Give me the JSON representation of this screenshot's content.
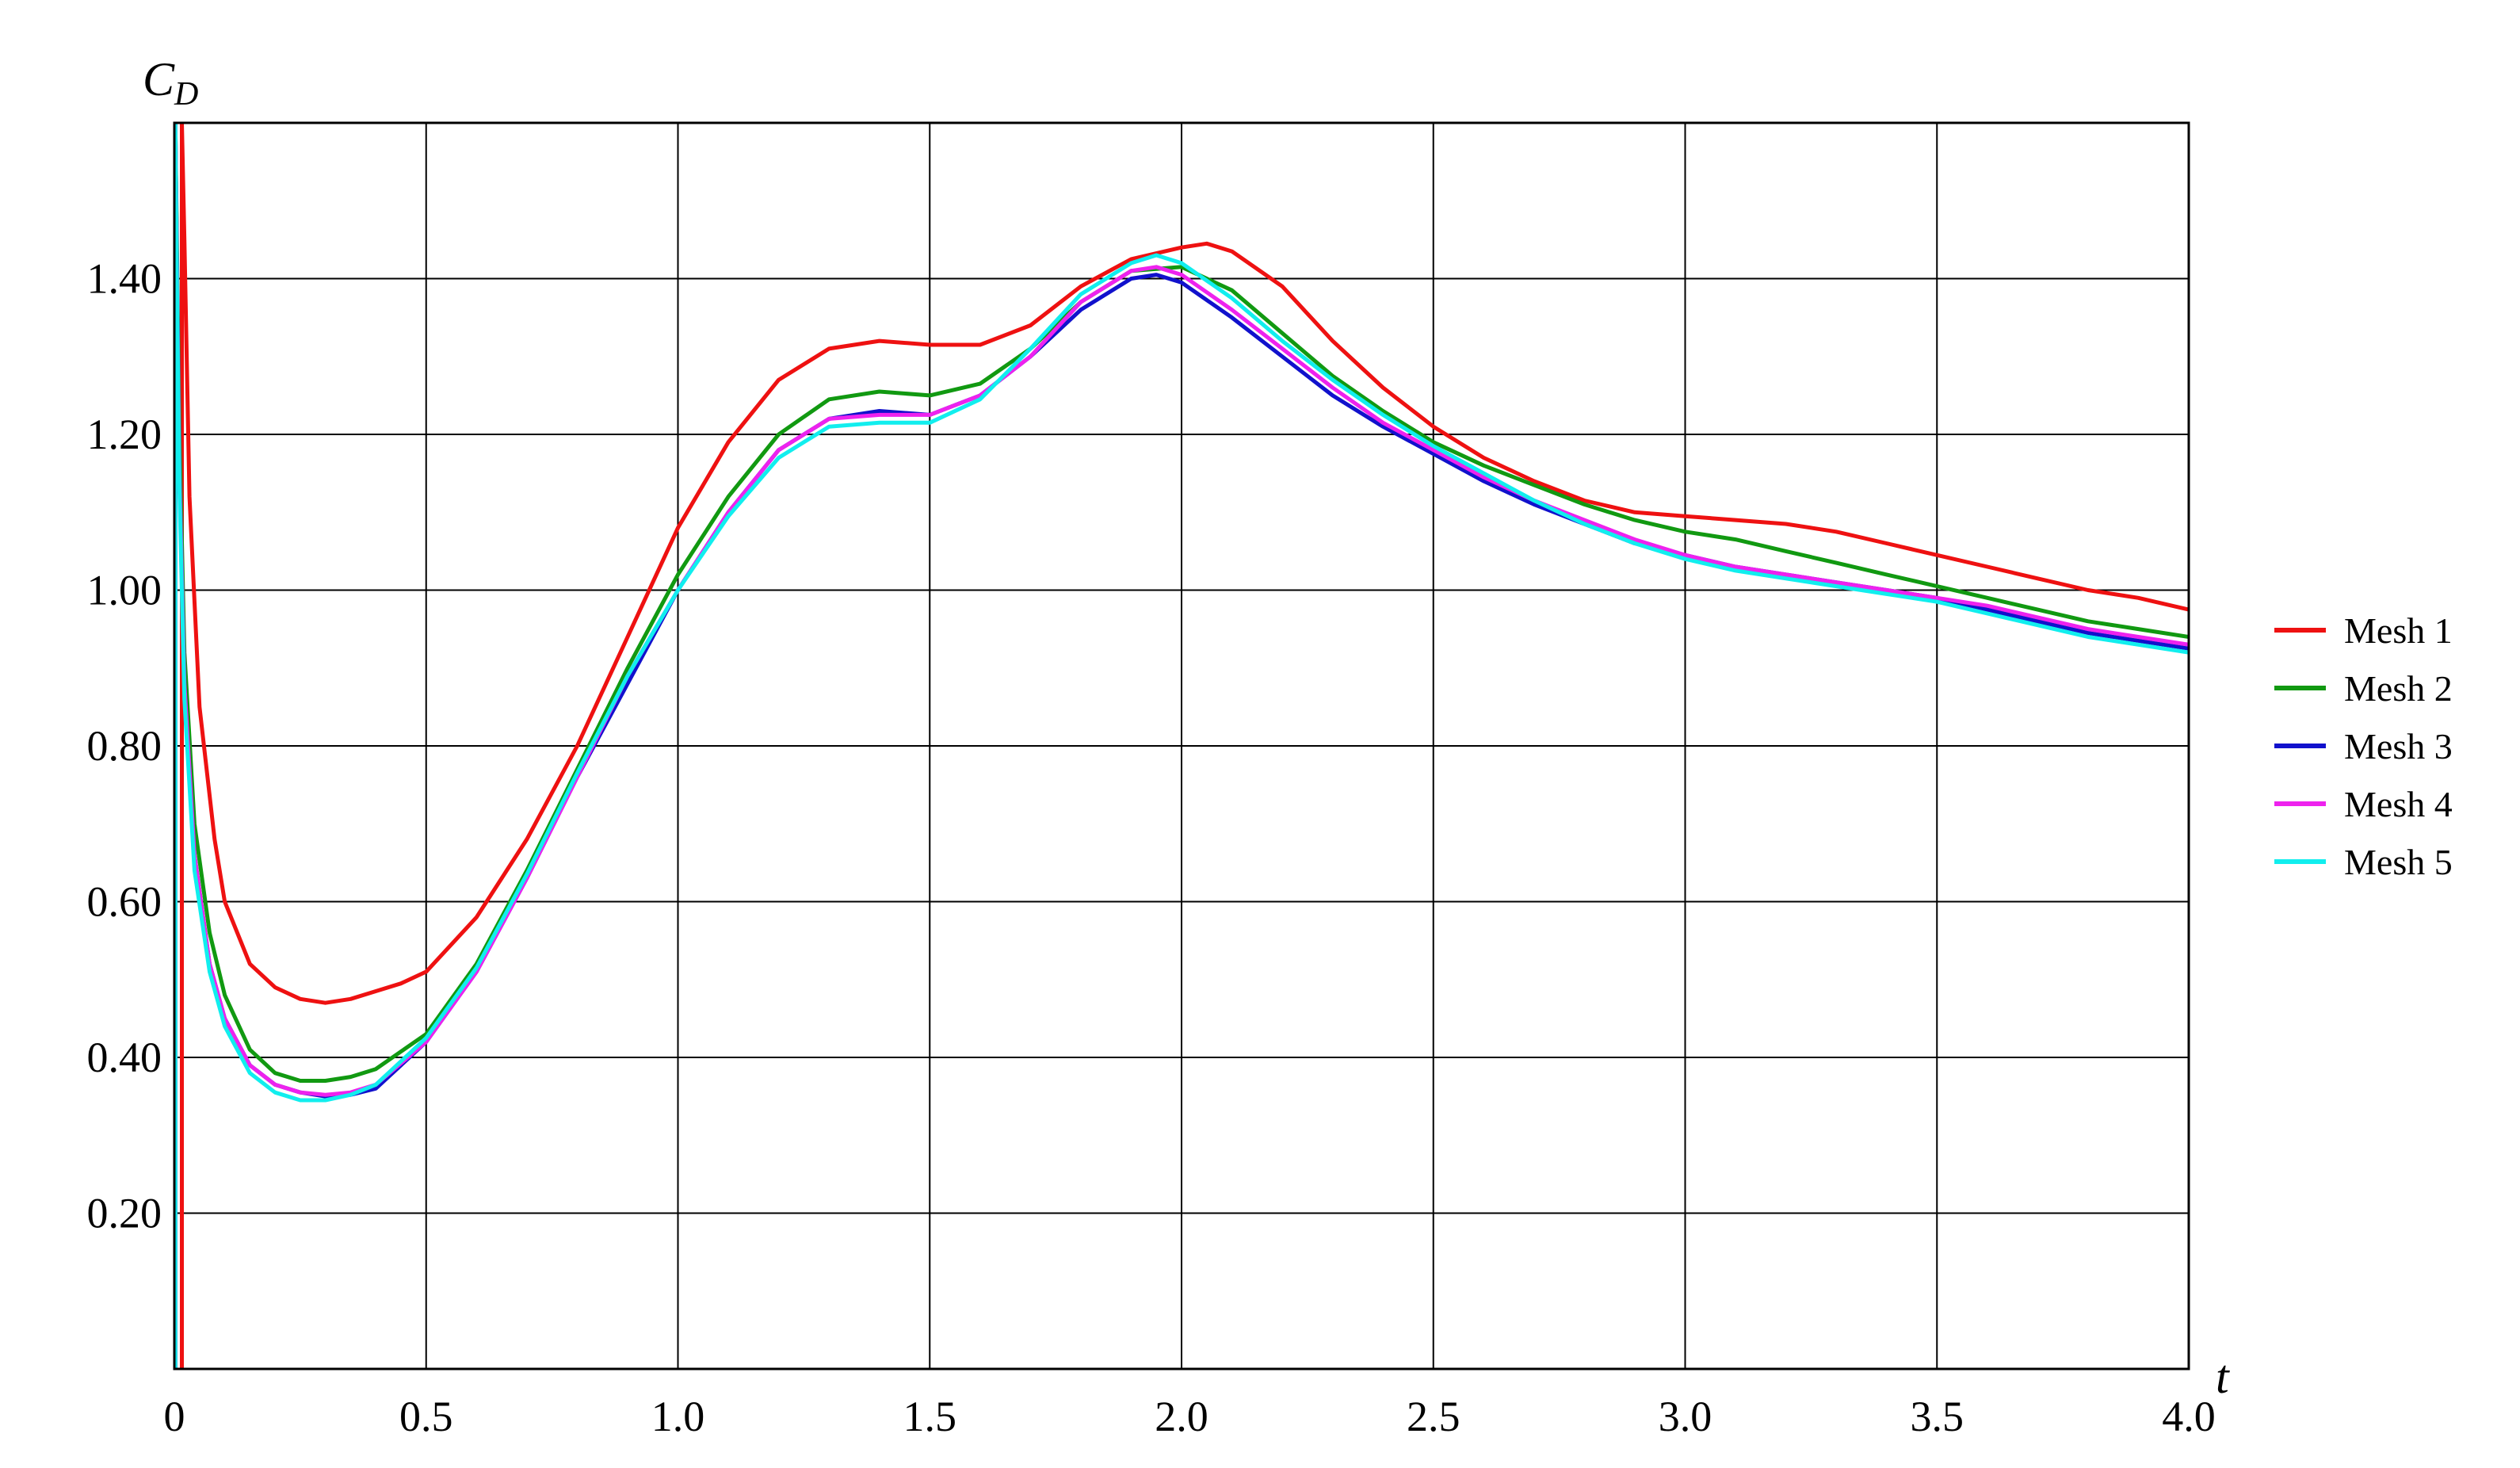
{
  "chart_data": {
    "type": "line",
    "ylabel": {
      "main": "C",
      "sub": "D"
    },
    "xlabel": "t",
    "xlim": [
      0,
      4.0
    ],
    "ylim": [
      0,
      1.6
    ],
    "grid": true,
    "legend_placement": "right",
    "x_ticks": [
      {
        "value": 0,
        "label": "0"
      },
      {
        "value": 0.5,
        "label": "0.5"
      },
      {
        "value": 1.0,
        "label": "1.0"
      },
      {
        "value": 1.5,
        "label": "1.5"
      },
      {
        "value": 2.0,
        "label": "2.0"
      },
      {
        "value": 2.5,
        "label": "2.5"
      },
      {
        "value": 3.0,
        "label": "3.0"
      },
      {
        "value": 3.5,
        "label": "3.5"
      },
      {
        "value": 4.0,
        "label": "4.0"
      }
    ],
    "y_ticks": [
      {
        "value": 0.2,
        "label": "0.20"
      },
      {
        "value": 0.4,
        "label": "0.40"
      },
      {
        "value": 0.6,
        "label": "0.60"
      },
      {
        "value": 0.8,
        "label": "0.80"
      },
      {
        "value": 1.0,
        "label": "1.00"
      },
      {
        "value": 1.2,
        "label": "1.20"
      },
      {
        "value": 1.4,
        "label": "1.40"
      }
    ],
    "series": [
      {
        "name": "Mesh 1",
        "color": "#ee1111",
        "x": [
          0.015,
          0.02,
          0.03,
          0.05,
          0.08,
          0.1,
          0.15,
          0.2,
          0.25,
          0.3,
          0.35,
          0.4,
          0.45,
          0.5,
          0.6,
          0.7,
          0.8,
          0.9,
          1.0,
          1.1,
          1.2,
          1.3,
          1.4,
          1.5,
          1.6,
          1.7,
          1.8,
          1.9,
          2.0,
          2.05,
          2.1,
          2.2,
          2.3,
          2.4,
          2.5,
          2.6,
          2.7,
          2.8,
          2.9,
          3.0,
          3.1,
          3.2,
          3.3,
          3.4,
          3.5,
          3.6,
          3.7,
          3.8,
          3.9,
          4.0
        ],
        "y": [
          1.6,
          1.45,
          1.12,
          0.85,
          0.68,
          0.6,
          0.52,
          0.49,
          0.475,
          0.47,
          0.475,
          0.485,
          0.495,
          0.51,
          0.58,
          0.68,
          0.8,
          0.94,
          1.08,
          1.19,
          1.27,
          1.31,
          1.32,
          1.315,
          1.315,
          1.34,
          1.39,
          1.425,
          1.44,
          1.445,
          1.435,
          1.39,
          1.32,
          1.26,
          1.21,
          1.17,
          1.14,
          1.115,
          1.1,
          1.095,
          1.09,
          1.085,
          1.075,
          1.06,
          1.045,
          1.03,
          1.015,
          1.0,
          0.99,
          0.975
        ]
      },
      {
        "name": "Mesh 2",
        "color": "#119911",
        "x": [
          0.002,
          0.005,
          0.01,
          0.02,
          0.04,
          0.07,
          0.1,
          0.15,
          0.2,
          0.25,
          0.3,
          0.35,
          0.4,
          0.5,
          0.6,
          0.7,
          0.8,
          0.9,
          1.0,
          1.1,
          1.2,
          1.3,
          1.4,
          1.5,
          1.6,
          1.7,
          1.8,
          1.9,
          2.0,
          2.1,
          2.2,
          2.3,
          2.4,
          2.5,
          2.6,
          2.7,
          2.8,
          2.9,
          3.0,
          3.1,
          3.2,
          3.3,
          3.4,
          3.5,
          3.6,
          3.7,
          3.8,
          3.9,
          4.0
        ],
        "y": [
          1.6,
          1.45,
          1.2,
          0.92,
          0.7,
          0.56,
          0.48,
          0.41,
          0.38,
          0.37,
          0.37,
          0.375,
          0.385,
          0.43,
          0.52,
          0.64,
          0.77,
          0.9,
          1.02,
          1.12,
          1.2,
          1.245,
          1.255,
          1.25,
          1.265,
          1.31,
          1.37,
          1.41,
          1.415,
          1.385,
          1.33,
          1.275,
          1.23,
          1.19,
          1.16,
          1.135,
          1.11,
          1.09,
          1.075,
          1.065,
          1.05,
          1.035,
          1.02,
          1.005,
          0.99,
          0.975,
          0.96,
          0.95,
          0.94
        ]
      },
      {
        "name": "Mesh 3",
        "color": "#1111cc",
        "x": [
          0.002,
          0.005,
          0.01,
          0.02,
          0.04,
          0.07,
          0.1,
          0.15,
          0.2,
          0.25,
          0.3,
          0.35,
          0.4,
          0.5,
          0.6,
          0.7,
          0.8,
          0.9,
          1.0,
          1.1,
          1.2,
          1.3,
          1.4,
          1.5,
          1.6,
          1.7,
          1.8,
          1.9,
          1.95,
          2.0,
          2.1,
          2.2,
          2.3,
          2.4,
          2.5,
          2.6,
          2.7,
          2.8,
          2.9,
          3.0,
          3.1,
          3.2,
          3.3,
          3.4,
          3.5,
          3.6,
          3.7,
          3.8,
          3.9,
          4.0
        ],
        "y": [
          1.6,
          1.42,
          1.15,
          0.88,
          0.66,
          0.52,
          0.45,
          0.39,
          0.365,
          0.355,
          0.35,
          0.352,
          0.36,
          0.42,
          0.51,
          0.63,
          0.76,
          0.88,
          1.0,
          1.1,
          1.18,
          1.22,
          1.23,
          1.225,
          1.25,
          1.3,
          1.36,
          1.4,
          1.405,
          1.395,
          1.35,
          1.3,
          1.25,
          1.21,
          1.175,
          1.14,
          1.11,
          1.085,
          1.06,
          1.045,
          1.03,
          1.02,
          1.01,
          1.0,
          0.99,
          0.975,
          0.96,
          0.945,
          0.935,
          0.925
        ]
      },
      {
        "name": "Mesh 4",
        "color": "#ee22ee",
        "x": [
          0.002,
          0.005,
          0.01,
          0.02,
          0.04,
          0.07,
          0.1,
          0.15,
          0.2,
          0.25,
          0.3,
          0.35,
          0.4,
          0.5,
          0.6,
          0.7,
          0.8,
          0.9,
          1.0,
          1.1,
          1.2,
          1.3,
          1.4,
          1.5,
          1.6,
          1.7,
          1.8,
          1.9,
          1.95,
          2.0,
          2.1,
          2.2,
          2.3,
          2.4,
          2.5,
          2.6,
          2.7,
          2.8,
          2.9,
          3.0,
          3.1,
          3.2,
          3.3,
          3.4,
          3.5,
          3.6,
          3.7,
          3.8,
          3.9,
          4.0
        ],
        "y": [
          1.6,
          1.42,
          1.15,
          0.88,
          0.66,
          0.52,
          0.45,
          0.39,
          0.365,
          0.355,
          0.352,
          0.355,
          0.365,
          0.42,
          0.51,
          0.63,
          0.76,
          0.89,
          1.0,
          1.1,
          1.18,
          1.22,
          1.225,
          1.225,
          1.25,
          1.3,
          1.37,
          1.41,
          1.415,
          1.405,
          1.36,
          1.31,
          1.26,
          1.215,
          1.18,
          1.145,
          1.115,
          1.09,
          1.065,
          1.045,
          1.03,
          1.02,
          1.01,
          1.0,
          0.99,
          0.98,
          0.965,
          0.95,
          0.94,
          0.93
        ]
      },
      {
        "name": "Mesh 5",
        "color": "#11eeee",
        "x": [
          0.002,
          0.005,
          0.01,
          0.02,
          0.04,
          0.07,
          0.1,
          0.15,
          0.2,
          0.25,
          0.3,
          0.35,
          0.4,
          0.5,
          0.6,
          0.7,
          0.8,
          0.9,
          1.0,
          1.1,
          1.2,
          1.3,
          1.4,
          1.5,
          1.6,
          1.7,
          1.8,
          1.9,
          1.95,
          2.0,
          2.1,
          2.2,
          2.3,
          2.4,
          2.5,
          2.6,
          2.7,
          2.8,
          2.9,
          3.0,
          3.1,
          3.2,
          3.3,
          3.4,
          3.5,
          3.6,
          3.7,
          3.8,
          3.9,
          4.0
        ],
        "y": [
          1.6,
          1.4,
          1.13,
          0.86,
          0.64,
          0.51,
          0.44,
          0.38,
          0.355,
          0.345,
          0.345,
          0.352,
          0.365,
          0.425,
          0.515,
          0.635,
          0.765,
          0.89,
          1.0,
          1.095,
          1.17,
          1.21,
          1.215,
          1.215,
          1.245,
          1.31,
          1.38,
          1.42,
          1.43,
          1.42,
          1.375,
          1.32,
          1.27,
          1.225,
          1.185,
          1.15,
          1.115,
          1.085,
          1.06,
          1.04,
          1.025,
          1.015,
          1.005,
          0.995,
          0.985,
          0.97,
          0.955,
          0.94,
          0.93,
          0.92
        ]
      }
    ]
  }
}
